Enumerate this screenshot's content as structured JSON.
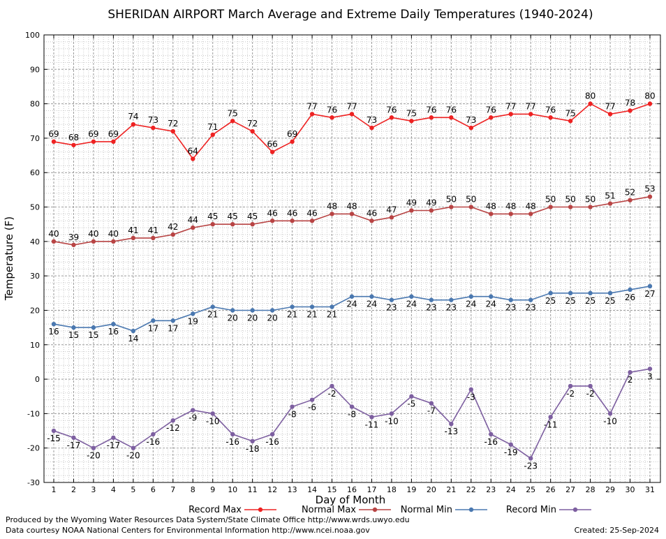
{
  "chart_data": {
    "type": "line",
    "title": "SHERIDAN AIRPORT March Average and Extreme Daily Temperatures (1940-2024)",
    "xlabel": "Day of Month",
    "ylabel": "Temperature (F)",
    "ylim": [
      -30,
      100
    ],
    "yticks": [
      -30,
      -20,
      -10,
      0,
      10,
      20,
      30,
      40,
      50,
      60,
      70,
      80,
      90,
      100
    ],
    "x": [
      1,
      2,
      3,
      4,
      5,
      6,
      7,
      8,
      9,
      10,
      11,
      12,
      13,
      14,
      15,
      16,
      17,
      18,
      19,
      20,
      21,
      22,
      23,
      24,
      25,
      26,
      27,
      28,
      29,
      30,
      31
    ],
    "grid": true,
    "legend_position": "bottom",
    "series": [
      {
        "name": "Record Max",
        "color": "#ee2222",
        "label_position": "above",
        "values": [
          69,
          68,
          69,
          69,
          74,
          73,
          72,
          64,
          71,
          75,
          72,
          66,
          69,
          77,
          76,
          77,
          73,
          76,
          75,
          76,
          76,
          73,
          76,
          77,
          77,
          76,
          75,
          80,
          77,
          78,
          80
        ]
      },
      {
        "name": "Normal Max",
        "color": "#b84444",
        "label_position": "above",
        "values": [
          40,
          39,
          40,
          40,
          41,
          41,
          42,
          44,
          45,
          45,
          45,
          46,
          46,
          46,
          48,
          48,
          46,
          47,
          49,
          49,
          50,
          50,
          48,
          48,
          48,
          50,
          50,
          50,
          51,
          52,
          53
        ]
      },
      {
        "name": "Normal Min",
        "color": "#4a78b0",
        "label_position": "below",
        "values": [
          16,
          15,
          15,
          16,
          14,
          17,
          17,
          19,
          21,
          20,
          20,
          20,
          21,
          21,
          21,
          24,
          24,
          23,
          24,
          23,
          23,
          24,
          24,
          23,
          23,
          25,
          25,
          25,
          25,
          26,
          27
        ]
      },
      {
        "name": "Record Min",
        "color": "#7d5fa0",
        "label_position": "below",
        "values": [
          -15,
          -17,
          -20,
          -17,
          -20,
          -16,
          -12,
          -9,
          -10,
          -16,
          -18,
          -16,
          -8,
          -6,
          -2,
          -8,
          -11,
          -10,
          -5,
          -7,
          -13,
          -3,
          -16,
          -19,
          -23,
          -11,
          -2,
          -2,
          -10,
          2,
          3
        ]
      }
    ]
  },
  "footer": {
    "produced_by": "Produced by the Wyoming Water Resources Data System/State Climate Office http://www.wrds.uwyo.edu",
    "data_courtesy": "Data courtesy NOAA National Centers for Environmental Information http://www.ncei.noaa.gov",
    "created": "Created:  25-Sep-2024"
  }
}
